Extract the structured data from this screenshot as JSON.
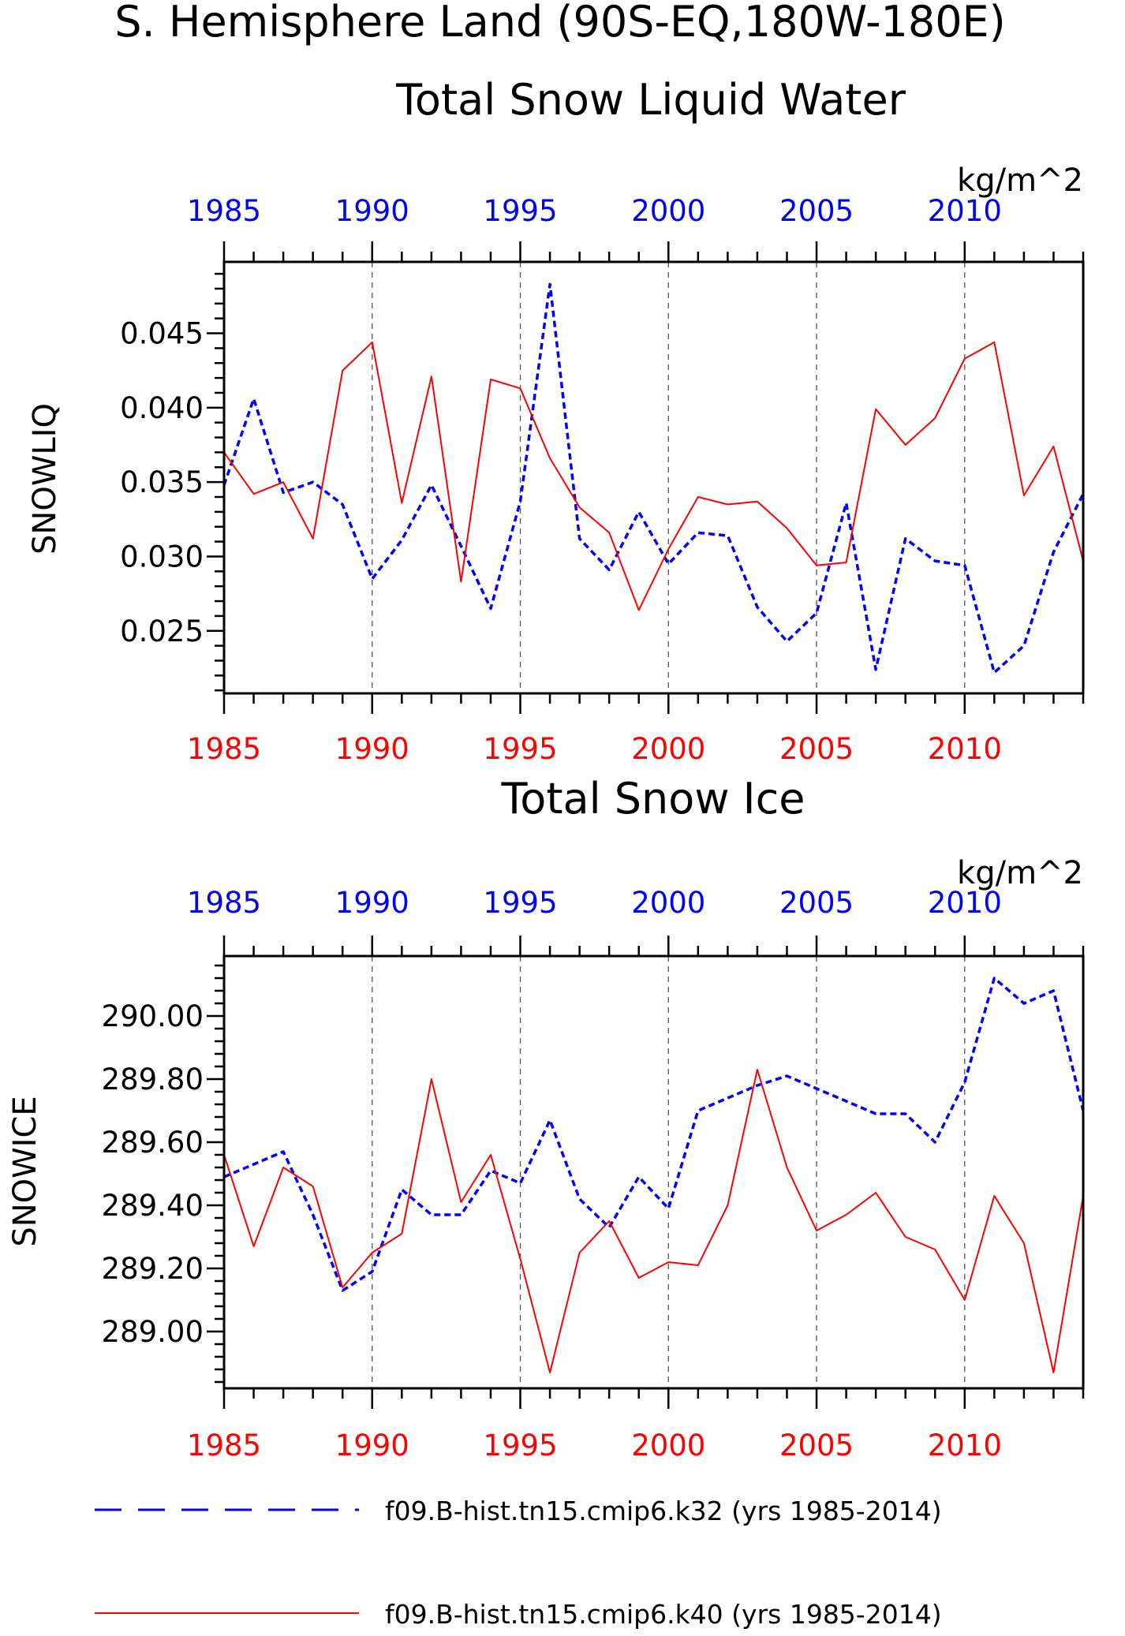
{
  "figure_title": "S. Hemisphere Land (90S-EQ,180W-180E)",
  "colors": {
    "series_a": "#0000ff",
    "series_b": "#ff0000",
    "axis": "#000000",
    "grid": "#555555"
  },
  "chart_data": [
    {
      "type": "line",
      "title": "Total Snow Liquid Water",
      "units": "kg/m^2",
      "ylabel": "SNOWLIQ",
      "xlabel": "",
      "xlim": [
        1985,
        2014
      ],
      "ylim": [
        0.0208,
        0.0498
      ],
      "yticks": [
        0.025,
        0.03,
        0.035,
        0.04,
        0.045
      ],
      "ytick_labels": [
        "0.025",
        "0.030",
        "0.035",
        "0.040",
        "0.045"
      ],
      "xticks": [
        1985,
        1990,
        1995,
        2000,
        2005,
        2010
      ],
      "xtick_labels": [
        "1985",
        "1990",
        "1995",
        "2000",
        "2005",
        "2010"
      ],
      "grid": "vertical dashed at major x ticks",
      "x": [
        1985,
        1986,
        1987,
        1988,
        1989,
        1990,
        1991,
        1992,
        1993,
        1994,
        1995,
        1996,
        1997,
        1998,
        1999,
        2000,
        2001,
        2002,
        2003,
        2004,
        2005,
        2006,
        2007,
        2008,
        2009,
        2010,
        2011,
        2012,
        2013,
        2014
      ],
      "series": [
        {
          "name": "f09.B-hist.tn15.cmip6.k32 (yrs 1985-2014)",
          "style": "dashed",
          "values": [
            0.0348,
            0.0406,
            0.0343,
            0.035,
            0.0335,
            0.0285,
            0.0311,
            0.0348,
            0.0307,
            0.0265,
            0.0337,
            0.0483,
            0.0312,
            0.0291,
            0.033,
            0.0295,
            0.0316,
            0.0314,
            0.0266,
            0.0243,
            0.0262,
            0.0336,
            0.0224,
            0.0312,
            0.0297,
            0.0294,
            0.0222,
            0.024,
            0.0303,
            0.0342
          ]
        },
        {
          "name": "f09.B-hist.tn15.cmip6.k40 (yrs 1985-2014)",
          "style": "solid",
          "values": [
            0.037,
            0.0342,
            0.035,
            0.0312,
            0.0425,
            0.0444,
            0.0336,
            0.0421,
            0.0283,
            0.0419,
            0.0413,
            0.0366,
            0.0333,
            0.0316,
            0.0264,
            0.0305,
            0.034,
            0.0335,
            0.0337,
            0.0319,
            0.0294,
            0.0296,
            0.0399,
            0.0375,
            0.0393,
            0.0433,
            0.0444,
            0.0341,
            0.0374,
            0.0297
          ]
        }
      ]
    },
    {
      "type": "line",
      "title": "Total Snow Ice",
      "units": "kg/m^2",
      "ylabel": "SNOWICE",
      "xlabel": "",
      "xlim": [
        1985,
        2014
      ],
      "ylim": [
        288.82,
        290.19
      ],
      "yticks": [
        289.0,
        289.2,
        289.4,
        289.6,
        289.8,
        290.0
      ],
      "ytick_labels": [
        "289.00",
        "289.20",
        "289.40",
        "289.60",
        "289.80",
        "290.00"
      ],
      "xticks": [
        1985,
        1990,
        1995,
        2000,
        2005,
        2010
      ],
      "xtick_labels": [
        "1985",
        "1990",
        "1995",
        "2000",
        "2005",
        "2010"
      ],
      "grid": "vertical dashed at major x ticks",
      "x": [
        1985,
        1986,
        1987,
        1988,
        1989,
        1990,
        1991,
        1992,
        1993,
        1994,
        1995,
        1996,
        1997,
        1998,
        1999,
        2000,
        2001,
        2002,
        2003,
        2004,
        2005,
        2006,
        2007,
        2008,
        2009,
        2010,
        2011,
        2012,
        2013,
        2014
      ],
      "series": [
        {
          "name": "f09.B-hist.tn15.cmip6.k32 (yrs 1985-2014)",
          "style": "dashed",
          "values": [
            289.49,
            289.53,
            289.57,
            289.37,
            289.13,
            289.19,
            289.45,
            289.37,
            289.37,
            289.51,
            289.47,
            289.67,
            289.42,
            289.33,
            289.49,
            289.39,
            289.7,
            289.74,
            289.78,
            289.81,
            289.77,
            289.73,
            289.69,
            289.69,
            289.6,
            289.79,
            290.12,
            290.04,
            290.08,
            289.7
          ]
        },
        {
          "name": "f09.B-hist.tn15.cmip6.k40 (yrs 1985-2014)",
          "style": "solid",
          "values": [
            289.56,
            289.27,
            289.52,
            289.46,
            289.14,
            289.25,
            289.31,
            289.8,
            289.41,
            289.56,
            289.23,
            288.87,
            289.25,
            289.35,
            289.17,
            289.22,
            289.21,
            289.4,
            289.83,
            289.52,
            289.32,
            289.37,
            289.44,
            289.3,
            289.26,
            289.1,
            289.43,
            289.28,
            288.87,
            289.43
          ]
        }
      ]
    }
  ],
  "legend": {
    "items": [
      {
        "label": "f09.B-hist.tn15.cmip6.k32 (yrs 1985-2014)",
        "style": "dashed"
      },
      {
        "label": "f09.B-hist.tn15.cmip6.k40 (yrs 1985-2014)",
        "style": "solid"
      }
    ]
  }
}
